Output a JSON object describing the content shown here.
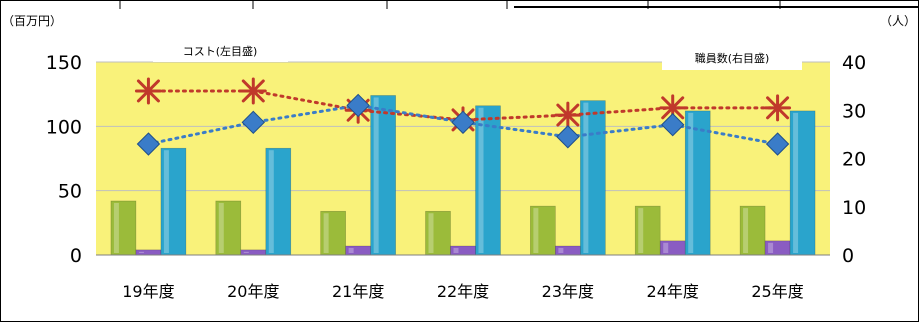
{
  "chart_data": {
    "type": "bar",
    "categories": [
      "19年度",
      "20年度",
      "21年度",
      "22年度",
      "23年度",
      "24年度",
      "25年度"
    ],
    "left_axis": {
      "unit_label": "（百万円）",
      "ylim": [
        0,
        150
      ],
      "ticks": [
        "0",
        "50",
        "100",
        "150"
      ]
    },
    "right_axis": {
      "unit_label": "（人）",
      "ylim": [
        0,
        40
      ],
      "ticks": [
        "0",
        "10",
        "20",
        "30",
        "40"
      ]
    },
    "legend_boxes": {
      "left": "コスト(左目盛)",
      "right": "職員数(右目盛)"
    },
    "series": [
      {
        "kind": "bar",
        "axis": "left",
        "color": "#9bbb3a",
        "values": [
          42,
          42,
          34,
          34,
          38,
          38,
          38
        ]
      },
      {
        "kind": "bar",
        "axis": "left",
        "color": "#8a5cc2",
        "values": [
          4,
          4,
          7,
          7,
          7,
          11,
          11
        ]
      },
      {
        "kind": "bar",
        "axis": "left",
        "color": "#2aa4cc",
        "values": [
          83,
          83,
          124,
          116,
          120,
          112,
          112
        ]
      },
      {
        "kind": "line",
        "axis": "right",
        "marker": "star",
        "color": "#c0392b",
        "values": [
          34,
          34,
          30,
          28,
          29,
          30.5,
          30.5
        ]
      },
      {
        "kind": "line",
        "axis": "right",
        "marker": "diamond",
        "color": "#3a7cc8",
        "values": [
          23,
          27.5,
          31,
          27.5,
          24.5,
          27,
          23
        ]
      }
    ],
    "grid": true,
    "plot_background": "#f9f27a"
  }
}
